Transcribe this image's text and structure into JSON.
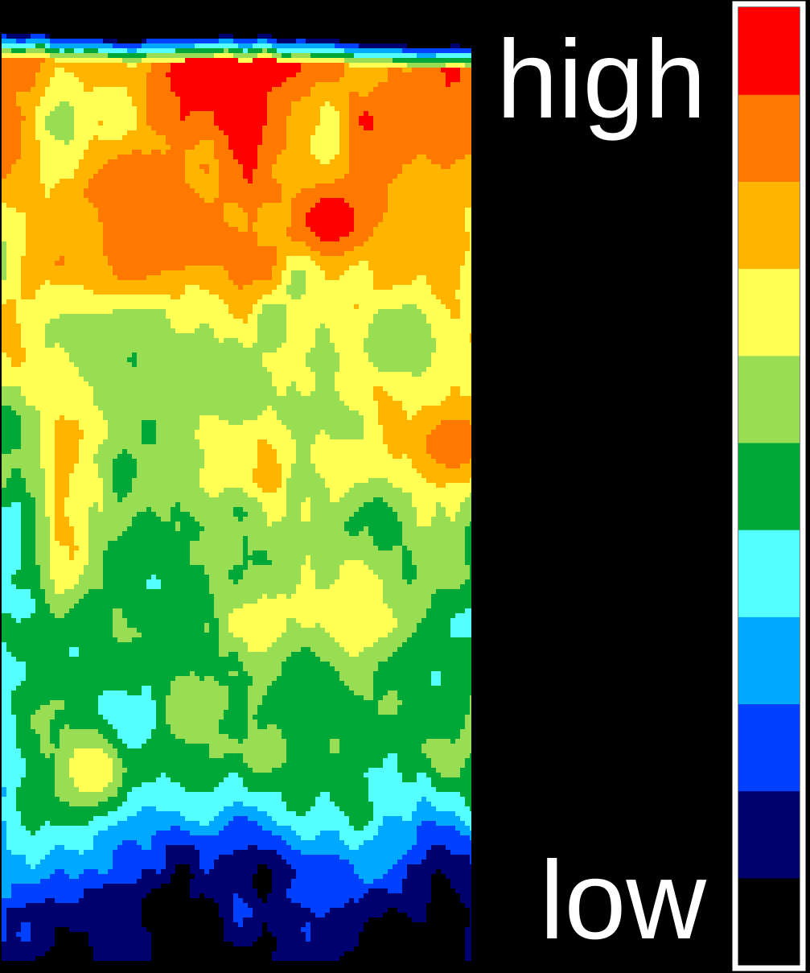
{
  "chart_data": {
    "type": "heatmap",
    "title": "",
    "xlabel": "",
    "ylabel": "",
    "grid": false,
    "legend": "right",
    "colorbar": {
      "high_label": "high",
      "low_label": "low",
      "levels": 11,
      "colors": [
        "#000000",
        "#00006e",
        "#0040ff",
        "#00a8ff",
        "#55ffff",
        "#00a838",
        "#99dd55",
        "#ffff55",
        "#ffb400",
        "#ff7800",
        "#ff0000"
      ]
    },
    "band_profile": [
      {
        "depth": 0.0,
        "level": 7.5
      },
      {
        "depth": 0.1,
        "level": 7.8
      },
      {
        "depth": 0.25,
        "level": 7.2
      },
      {
        "depth": 0.4,
        "level": 6.8
      },
      {
        "depth": 0.55,
        "level": 5.8
      },
      {
        "depth": 0.65,
        "level": 5.1
      },
      {
        "depth": 0.75,
        "level": 4.7
      },
      {
        "depth": 0.84,
        "level": 3.6
      },
      {
        "depth": 0.92,
        "level": 1.6
      },
      {
        "depth": 1.0,
        "level": 0.7
      }
    ],
    "hotspots": [
      {
        "x": 0.42,
        "y": 0.05,
        "level": 10
      },
      {
        "x": 0.59,
        "y": 0.03,
        "level": 10
      },
      {
        "x": 0.7,
        "y": 0.21,
        "level": 10
      },
      {
        "x": 0.27,
        "y": 0.17,
        "level": 9
      },
      {
        "x": 0.4,
        "y": 0.23,
        "level": 9
      },
      {
        "x": 0.93,
        "y": 0.09,
        "level": 9
      },
      {
        "x": 0.96,
        "y": 0.45,
        "level": 9
      },
      {
        "x": 0.28,
        "y": 0.36,
        "level": 5
      },
      {
        "x": 0.5,
        "y": 0.39,
        "level": 5
      },
      {
        "x": 0.83,
        "y": 0.34,
        "level": 5
      },
      {
        "x": 0.32,
        "y": 0.6,
        "level": 4
      },
      {
        "x": 0.65,
        "y": 0.72,
        "level": 4
      },
      {
        "x": 0.15,
        "y": 0.67,
        "level": 4
      },
      {
        "x": 0.2,
        "y": 0.8,
        "level": 7
      },
      {
        "x": 0.75,
        "y": 0.63,
        "level": 7
      }
    ]
  }
}
